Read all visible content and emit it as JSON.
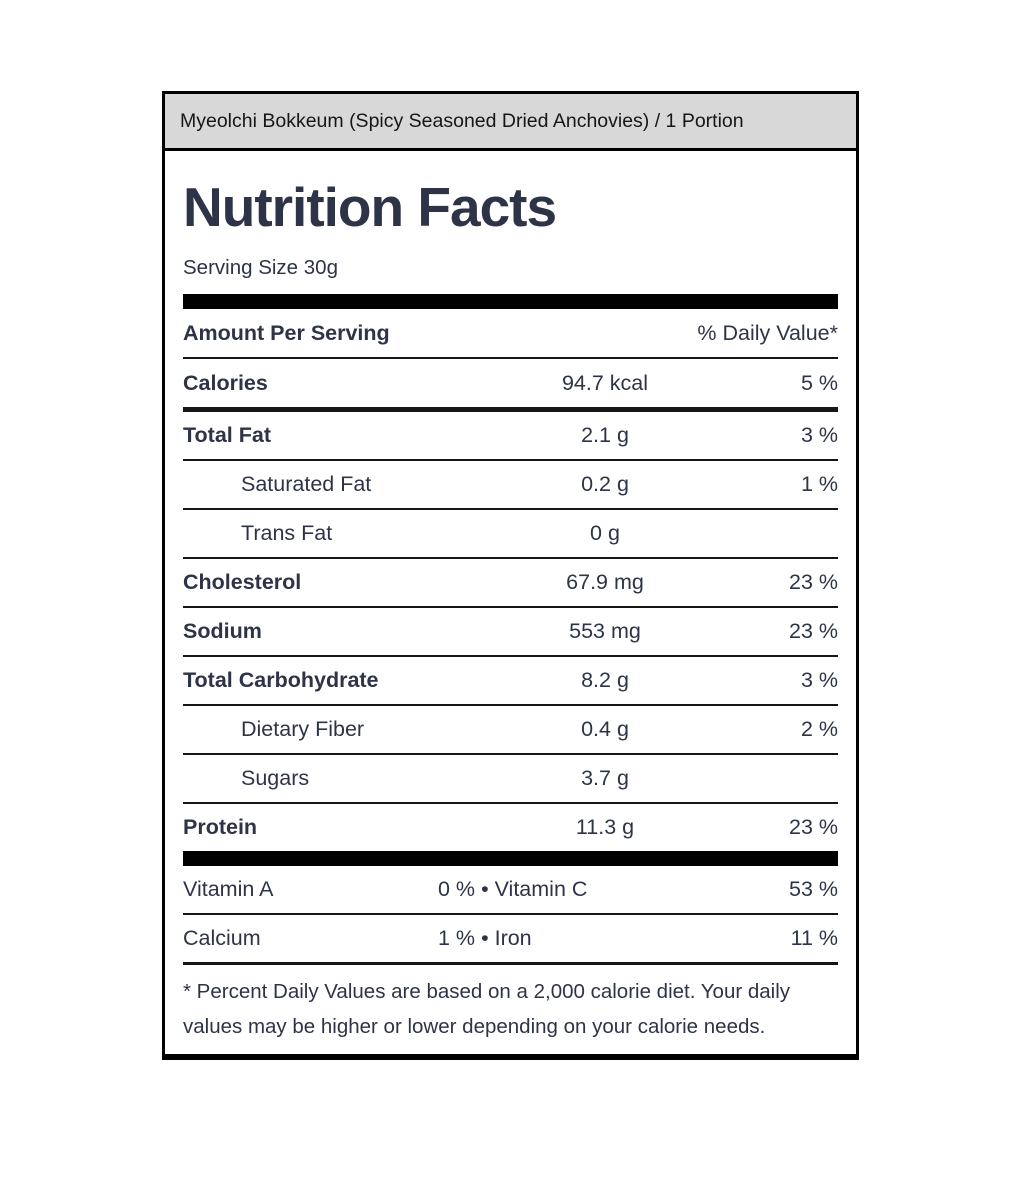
{
  "product_bar": {
    "title": "Myeolchi Bokkeum (Spicy Seasoned Dried Anchovies) / 1 Portion"
  },
  "label": {
    "title": "Nutrition Facts",
    "serving_size": "Serving Size 30g",
    "column_headers": {
      "amount": "Amount Per Serving",
      "daily_value": "% Daily Value*"
    },
    "rows": [
      {
        "label": "Calories",
        "amount": "94.7 kcal",
        "dv": "5 %"
      },
      {
        "label": "Total Fat",
        "amount": "2.1 g",
        "dv": "3 %"
      },
      {
        "label": "Saturated Fat",
        "amount": "0.2 g",
        "dv": "1 %"
      },
      {
        "label": "Trans Fat",
        "amount": "0 g",
        "dv": ""
      },
      {
        "label": "Cholesterol",
        "amount": "67.9 mg",
        "dv": "23 %"
      },
      {
        "label": "Sodium",
        "amount": "553 mg",
        "dv": "23 %"
      },
      {
        "label": "Total Carbohydrate",
        "amount": "8.2 g",
        "dv": "3 %"
      },
      {
        "label": "Dietary Fiber",
        "amount": "0.4 g",
        "dv": "2 %"
      },
      {
        "label": "Sugars",
        "amount": "3.7 g",
        "dv": ""
      },
      {
        "label": "Protein",
        "amount": "11.3 g",
        "dv": "23 %"
      }
    ],
    "micronutrients": [
      {
        "label": "Vitamin A",
        "value": "0 %",
        "separator": "•",
        "second_label": "Vitamin C",
        "second_value": "53 %"
      },
      {
        "label": "Calcium",
        "value": "1 %",
        "separator": "•",
        "second_label": "Iron",
        "second_value": "11 %"
      }
    ],
    "footnote": "* Percent Daily Values are based on a 2,000 calorie diet. Your daily values may be higher or lower depending on your calorie needs."
  },
  "colors": {
    "text": "#2e3447",
    "header_background": "#d8d8d8",
    "border": "#000000"
  }
}
